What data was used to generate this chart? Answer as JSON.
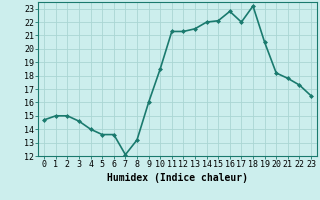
{
  "x": [
    0,
    1,
    2,
    3,
    4,
    5,
    6,
    7,
    8,
    9,
    10,
    11,
    12,
    13,
    14,
    15,
    16,
    17,
    18,
    19,
    20,
    21,
    22,
    23
  ],
  "y": [
    14.7,
    15.0,
    15.0,
    14.6,
    14.0,
    13.6,
    13.6,
    12.1,
    13.2,
    16.0,
    18.5,
    21.3,
    21.3,
    21.5,
    22.0,
    22.1,
    22.8,
    22.0,
    23.2,
    20.5,
    18.2,
    17.8,
    17.3,
    16.5
  ],
  "line_color": "#1a7a6e",
  "marker": "D",
  "marker_size": 2.0,
  "bg_color": "#cceeed",
  "grid_color": "#aad6d3",
  "xlabel": "Humidex (Indice chaleur)",
  "xlim": [
    -0.5,
    23.5
  ],
  "ylim": [
    12,
    23.5
  ],
  "yticks": [
    12,
    13,
    14,
    15,
    16,
    17,
    18,
    19,
    20,
    21,
    22,
    23
  ],
  "xticks": [
    0,
    1,
    2,
    3,
    4,
    5,
    6,
    7,
    8,
    9,
    10,
    11,
    12,
    13,
    14,
    15,
    16,
    17,
    18,
    19,
    20,
    21,
    22,
    23
  ],
  "xlabel_fontsize": 7,
  "tick_fontsize": 6,
  "line_width": 1.2
}
